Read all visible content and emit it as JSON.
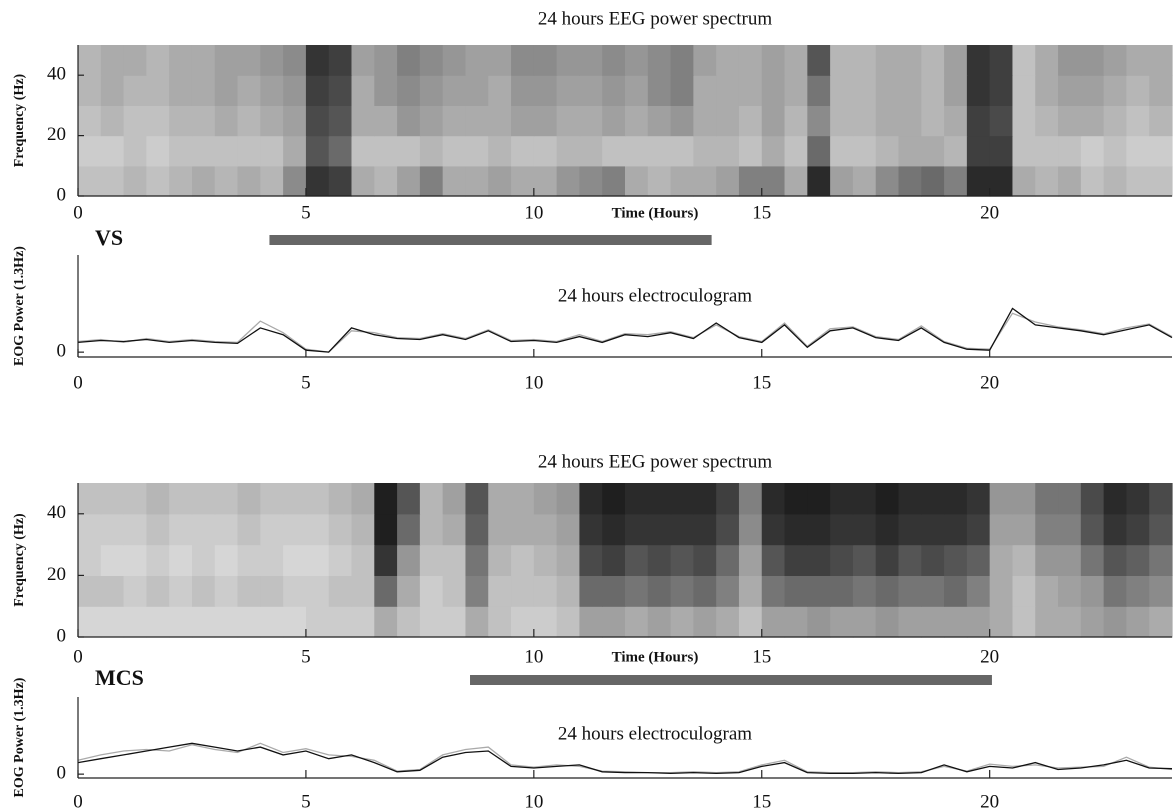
{
  "chart_data": [
    {
      "type": "heatmap",
      "title": "24 hours EEG power spectrum",
      "y_label": "Frequency (Hz)",
      "x_label": "Time (Hours)",
      "label": "VS",
      "period": [
        4.2,
        13.9
      ],
      "period_color": "#666666",
      "colormap": [
        "#ececec",
        "#141414"
      ],
      "xlim": [
        0,
        24
      ],
      "xticks": [
        0,
        5,
        10,
        15,
        20
      ],
      "ylim": [
        0,
        50
      ],
      "yticks": [
        0,
        20,
        40
      ],
      "values": [
        [
          0.2,
          0.2,
          0.25,
          0.2,
          0.25,
          0.3,
          0.25,
          0.3,
          0.25,
          0.45,
          0.85,
          0.8,
          0.3,
          0.25,
          0.35,
          0.5,
          0.3,
          0.3,
          0.35,
          0.3,
          0.3,
          0.4,
          0.45,
          0.5,
          0.3,
          0.25,
          0.3,
          0.3,
          0.35,
          0.5,
          0.5,
          0.3,
          0.9,
          0.35,
          0.3,
          0.45,
          0.55,
          0.6,
          0.5,
          0.9,
          0.9,
          0.3,
          0.25,
          0.3,
          0.2,
          0.25,
          0.2,
          0.2
        ],
        [
          0.15,
          0.15,
          0.2,
          0.15,
          0.2,
          0.2,
          0.2,
          0.2,
          0.2,
          0.3,
          0.7,
          0.6,
          0.2,
          0.2,
          0.2,
          0.25,
          0.2,
          0.2,
          0.25,
          0.2,
          0.2,
          0.25,
          0.25,
          0.2,
          0.2,
          0.2,
          0.2,
          0.25,
          0.25,
          0.2,
          0.3,
          0.2,
          0.6,
          0.2,
          0.2,
          0.25,
          0.3,
          0.3,
          0.25,
          0.8,
          0.8,
          0.2,
          0.2,
          0.2,
          0.15,
          0.2,
          0.15,
          0.15
        ],
        [
          0.2,
          0.25,
          0.2,
          0.2,
          0.25,
          0.25,
          0.3,
          0.25,
          0.3,
          0.35,
          0.75,
          0.7,
          0.3,
          0.3,
          0.4,
          0.35,
          0.3,
          0.3,
          0.3,
          0.35,
          0.35,
          0.3,
          0.3,
          0.35,
          0.3,
          0.35,
          0.4,
          0.3,
          0.3,
          0.25,
          0.35,
          0.25,
          0.45,
          0.25,
          0.25,
          0.3,
          0.3,
          0.25,
          0.3,
          0.8,
          0.75,
          0.2,
          0.25,
          0.3,
          0.3,
          0.25,
          0.2,
          0.25
        ],
        [
          0.25,
          0.3,
          0.25,
          0.25,
          0.3,
          0.3,
          0.35,
          0.3,
          0.35,
          0.4,
          0.8,
          0.75,
          0.3,
          0.4,
          0.45,
          0.4,
          0.35,
          0.35,
          0.3,
          0.4,
          0.4,
          0.35,
          0.35,
          0.4,
          0.35,
          0.45,
          0.5,
          0.3,
          0.3,
          0.3,
          0.35,
          0.3,
          0.55,
          0.25,
          0.25,
          0.3,
          0.3,
          0.25,
          0.35,
          0.85,
          0.8,
          0.2,
          0.3,
          0.35,
          0.35,
          0.3,
          0.25,
          0.3
        ],
        [
          0.25,
          0.3,
          0.3,
          0.25,
          0.3,
          0.3,
          0.35,
          0.35,
          0.4,
          0.45,
          0.85,
          0.8,
          0.35,
          0.4,
          0.5,
          0.45,
          0.4,
          0.35,
          0.35,
          0.45,
          0.45,
          0.4,
          0.4,
          0.45,
          0.4,
          0.45,
          0.5,
          0.35,
          0.3,
          0.3,
          0.35,
          0.3,
          0.7,
          0.25,
          0.25,
          0.3,
          0.3,
          0.25,
          0.35,
          0.85,
          0.8,
          0.2,
          0.3,
          0.4,
          0.4,
          0.35,
          0.3,
          0.3
        ]
      ]
    },
    {
      "type": "line",
      "title": "24 hours electroculogram",
      "y_label": "EOG Power (1.3Hz)",
      "xlim": [
        0,
        24
      ],
      "xticks": [
        0,
        5,
        10,
        15,
        20
      ],
      "ylim": [
        -0.5,
        10
      ],
      "yticks": [
        0
      ],
      "x": [
        0,
        0.5,
        1,
        1.5,
        2,
        2.5,
        3,
        3.5,
        4,
        4.5,
        5,
        5.5,
        6,
        6.5,
        7,
        7.5,
        8,
        8.5,
        9,
        9.5,
        10,
        10.5,
        11,
        11.5,
        12,
        12.5,
        13,
        13.5,
        14,
        14.5,
        15,
        15.5,
        16,
        16.5,
        17,
        17.5,
        18,
        18.5,
        19,
        19.5,
        20,
        20.5,
        21,
        21.5,
        22,
        22.5,
        23,
        23.5,
        24
      ],
      "series": [
        {
          "color": "#aaaaaa",
          "values": [
            1.1,
            1.3,
            1,
            1.4,
            1.1,
            1.3,
            1.1,
            1,
            3.2,
            2,
            0.3,
            0,
            2.2,
            2,
            1.5,
            1.4,
            1.9,
            1.4,
            2.3,
            1.2,
            1.3,
            1.1,
            1.8,
            1.1,
            1.9,
            1.8,
            2.1,
            1.5,
            2.8,
            1.6,
            1.1,
            3,
            0.6,
            2.4,
            2.6,
            1.6,
            1.3,
            2.7,
            1.1,
            0.4,
            0.3,
            4,
            3.1,
            2.6,
            2.3,
            1.9,
            2.5,
            2.9,
            1.6
          ]
        },
        {
          "color": "#111111",
          "values": [
            1,
            1.2,
            1.1,
            1.3,
            1,
            1.2,
            1,
            0.9,
            2.5,
            1.8,
            0.2,
            0,
            2.5,
            1.8,
            1.4,
            1.3,
            1.8,
            1.3,
            2.2,
            1.1,
            1.2,
            1,
            1.6,
            1,
            1.8,
            1.6,
            2,
            1.4,
            3,
            1.5,
            1,
            2.8,
            0.5,
            2.2,
            2.5,
            1.5,
            1.2,
            2.5,
            1,
            0.3,
            0.2,
            4.5,
            2.8,
            2.5,
            2.2,
            1.8,
            2.3,
            2.8,
            1.5
          ]
        }
      ]
    },
    {
      "type": "heatmap",
      "title": "24 hours EEG power spectrum",
      "y_label": "Frequency (Hz)",
      "x_label": "Time (Hours)",
      "label": "MCS",
      "period": [
        8.6,
        20.05
      ],
      "period_color": "#666666",
      "colormap": [
        "#ececec",
        "#141414"
      ],
      "xlim": [
        0,
        24
      ],
      "xticks": [
        0,
        5,
        10,
        15,
        20
      ],
      "ylim": [
        0,
        50
      ],
      "yticks": [
        0,
        20,
        40
      ],
      "values": [
        [
          0.1,
          0.1,
          0.1,
          0.1,
          0.1,
          0.1,
          0.1,
          0.1,
          0.1,
          0.1,
          0.15,
          0.15,
          0.15,
          0.3,
          0.2,
          0.15,
          0.15,
          0.3,
          0.2,
          0.15,
          0.15,
          0.2,
          0.35,
          0.35,
          0.3,
          0.35,
          0.3,
          0.35,
          0.3,
          0.2,
          0.35,
          0.35,
          0.4,
          0.35,
          0.35,
          0.4,
          0.35,
          0.35,
          0.35,
          0.35,
          0.3,
          0.2,
          0.3,
          0.3,
          0.35,
          0.4,
          0.35,
          0.3
        ],
        [
          0.2,
          0.2,
          0.15,
          0.2,
          0.15,
          0.2,
          0.15,
          0.2,
          0.2,
          0.15,
          0.15,
          0.2,
          0.2,
          0.6,
          0.3,
          0.15,
          0.2,
          0.5,
          0.2,
          0.2,
          0.2,
          0.25,
          0.6,
          0.6,
          0.55,
          0.6,
          0.55,
          0.6,
          0.5,
          0.3,
          0.55,
          0.6,
          0.6,
          0.6,
          0.55,
          0.6,
          0.55,
          0.55,
          0.6,
          0.5,
          0.3,
          0.2,
          0.3,
          0.35,
          0.4,
          0.55,
          0.5,
          0.45
        ],
        [
          0.15,
          0.1,
          0.1,
          0.15,
          0.1,
          0.15,
          0.1,
          0.15,
          0.15,
          0.1,
          0.1,
          0.15,
          0.2,
          0.85,
          0.4,
          0.2,
          0.2,
          0.55,
          0.25,
          0.2,
          0.25,
          0.3,
          0.75,
          0.8,
          0.7,
          0.75,
          0.7,
          0.75,
          0.6,
          0.35,
          0.7,
          0.8,
          0.8,
          0.75,
          0.7,
          0.8,
          0.7,
          0.75,
          0.7,
          0.65,
          0.3,
          0.25,
          0.4,
          0.4,
          0.55,
          0.7,
          0.65,
          0.55
        ],
        [
          0.15,
          0.15,
          0.15,
          0.2,
          0.15,
          0.15,
          0.15,
          0.2,
          0.15,
          0.15,
          0.15,
          0.2,
          0.25,
          0.95,
          0.6,
          0.25,
          0.3,
          0.65,
          0.3,
          0.3,
          0.3,
          0.35,
          0.85,
          0.9,
          0.85,
          0.85,
          0.85,
          0.85,
          0.75,
          0.45,
          0.85,
          0.9,
          0.9,
          0.85,
          0.85,
          0.9,
          0.85,
          0.85,
          0.85,
          0.8,
          0.35,
          0.35,
          0.5,
          0.5,
          0.7,
          0.85,
          0.8,
          0.7
        ],
        [
          0.2,
          0.2,
          0.2,
          0.25,
          0.2,
          0.2,
          0.2,
          0.25,
          0.2,
          0.2,
          0.2,
          0.25,
          0.3,
          0.95,
          0.7,
          0.25,
          0.35,
          0.7,
          0.3,
          0.3,
          0.35,
          0.4,
          0.9,
          0.95,
          0.9,
          0.9,
          0.9,
          0.9,
          0.8,
          0.5,
          0.9,
          0.95,
          0.95,
          0.9,
          0.9,
          0.95,
          0.9,
          0.9,
          0.9,
          0.85,
          0.4,
          0.4,
          0.55,
          0.55,
          0.75,
          0.9,
          0.85,
          0.75
        ]
      ]
    },
    {
      "type": "line",
      "title": "24 hours electroculogram",
      "y_label": "EOG Power (1.3Hz)",
      "xlim": [
        0,
        24
      ],
      "xticks": [
        0,
        5,
        10,
        15,
        20
      ],
      "ylim": [
        -0.5,
        10
      ],
      "yticks": [
        0
      ],
      "x": [
        0,
        0.5,
        1,
        1.5,
        2,
        2.5,
        3,
        3.5,
        4,
        4.5,
        5,
        5.5,
        6,
        6.5,
        7,
        7.5,
        8,
        8.5,
        9,
        9.5,
        10,
        10.5,
        11,
        11.5,
        12,
        12.5,
        13,
        13.5,
        14,
        14.5,
        15,
        15.5,
        16,
        16.5,
        17,
        17.5,
        18,
        18.5,
        19,
        19.5,
        20,
        20.5,
        21,
        21.5,
        22,
        22.5,
        23,
        23.5,
        24
      ],
      "series": [
        {
          "color": "#aaaaaa",
          "values": [
            1.8,
            2.5,
            3,
            3.2,
            3,
            3.8,
            3.2,
            2.8,
            4,
            2.8,
            3.3,
            2.5,
            2.3,
            1.8,
            0.4,
            0.6,
            2.5,
            3.2,
            3.5,
            1.2,
            0.9,
            1.2,
            1,
            0.4,
            0.3,
            0.2,
            0.2,
            0.3,
            0.2,
            0.3,
            1.2,
            1.8,
            0.3,
            0.2,
            0.2,
            0.3,
            0.2,
            0.3,
            1,
            0.4,
            1.3,
            1,
            1.2,
            0.8,
            0.9,
            1,
            2.2,
            0.9,
            0.6
          ]
        },
        {
          "color": "#111111",
          "values": [
            1.5,
            2,
            2.5,
            3,
            3.5,
            4,
            3.5,
            3,
            3.5,
            2.5,
            3,
            2,
            2.5,
            1.5,
            0.3,
            0.5,
            2.2,
            2.8,
            3,
            1,
            0.8,
            1,
            1.2,
            0.3,
            0.2,
            0.2,
            0.1,
            0.2,
            0.1,
            0.2,
            1,
            1.5,
            0.2,
            0.1,
            0.1,
            0.2,
            0.1,
            0.2,
            1.2,
            0.3,
            1,
            0.8,
            1.5,
            0.6,
            0.8,
            1.2,
            1.8,
            0.8,
            0.7
          ]
        }
      ]
    }
  ]
}
